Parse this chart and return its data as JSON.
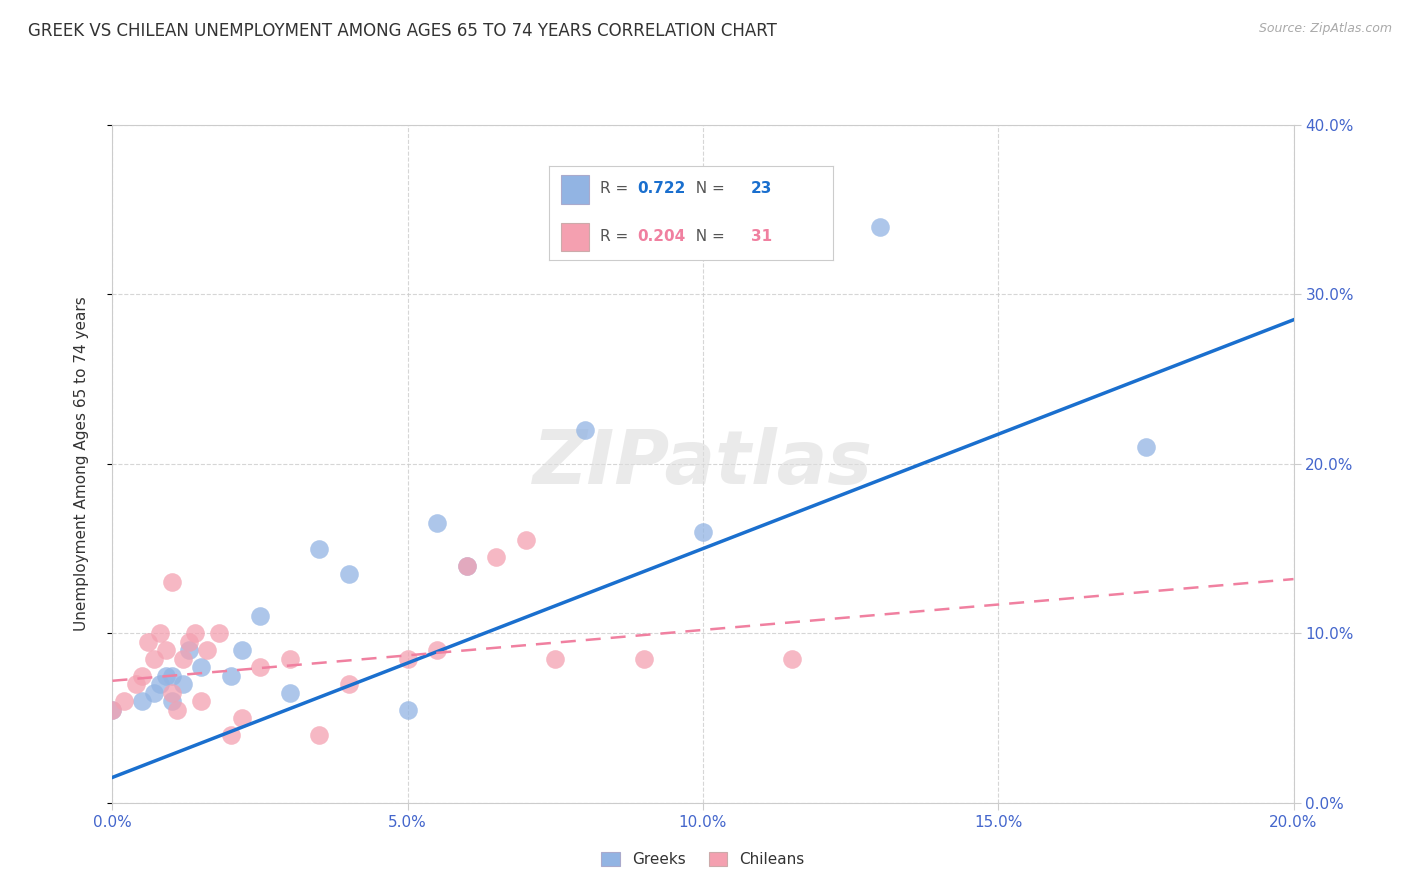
{
  "title": "GREEK VS CHILEAN UNEMPLOYMENT AMONG AGES 65 TO 74 YEARS CORRELATION CHART",
  "source": "Source: ZipAtlas.com",
  "ylabel": "Unemployment Among Ages 65 to 74 years",
  "xlim": [
    0.0,
    0.2
  ],
  "ylim": [
    0.0,
    0.4
  ],
  "greek_R": 0.722,
  "greek_N": 23,
  "chilean_R": 0.204,
  "chilean_N": 31,
  "greek_color": "#92b4e3",
  "chilean_color": "#f4a0b0",
  "greek_line_color": "#1a6fce",
  "chilean_line_color": "#f080a0",
  "watermark": "ZIPatlas",
  "title_fontsize": 12,
  "greek_x": [
    0.0,
    0.005,
    0.007,
    0.008,
    0.009,
    0.01,
    0.01,
    0.012,
    0.013,
    0.015,
    0.02,
    0.022,
    0.025,
    0.03,
    0.035,
    0.04,
    0.05,
    0.055,
    0.06,
    0.08,
    0.1,
    0.13,
    0.175
  ],
  "greek_y": [
    0.055,
    0.06,
    0.065,
    0.07,
    0.075,
    0.06,
    0.075,
    0.07,
    0.09,
    0.08,
    0.075,
    0.09,
    0.11,
    0.065,
    0.15,
    0.135,
    0.055,
    0.165,
    0.14,
    0.22,
    0.16,
    0.34,
    0.21
  ],
  "chilean_x": [
    0.0,
    0.002,
    0.004,
    0.005,
    0.006,
    0.007,
    0.008,
    0.009,
    0.01,
    0.01,
    0.011,
    0.012,
    0.013,
    0.014,
    0.015,
    0.016,
    0.018,
    0.02,
    0.022,
    0.025,
    0.03,
    0.035,
    0.04,
    0.05,
    0.055,
    0.06,
    0.065,
    0.07,
    0.075,
    0.09,
    0.115
  ],
  "chilean_y": [
    0.055,
    0.06,
    0.07,
    0.075,
    0.095,
    0.085,
    0.1,
    0.09,
    0.065,
    0.13,
    0.055,
    0.085,
    0.095,
    0.1,
    0.06,
    0.09,
    0.1,
    0.04,
    0.05,
    0.08,
    0.085,
    0.04,
    0.07,
    0.085,
    0.09,
    0.14,
    0.145,
    0.155,
    0.085,
    0.085,
    0.085
  ],
  "greek_line_x": [
    0.0,
    0.2
  ],
  "greek_line_y": [
    0.015,
    0.285
  ],
  "chilean_line_x": [
    0.0,
    0.2
  ],
  "chilean_line_y": [
    0.072,
    0.132
  ]
}
